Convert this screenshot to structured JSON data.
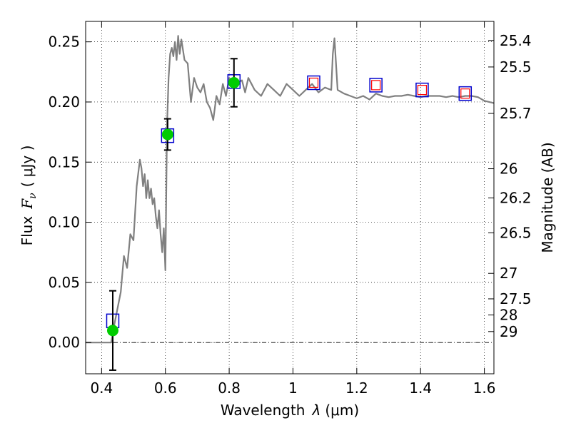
{
  "chart_data": {
    "type": "scatter",
    "xlabel_text": "Wavelength",
    "xlabel_lambda": "λ",
    "xlabel_unit": "(μm)",
    "ylabel_text": "Flux",
    "ylabel_symbol": "F",
    "ylabel_sub": "ν",
    "ylabel_unit": "( μJy )",
    "y2label": "Magnitude (AB)",
    "xlim": [
      0.35,
      1.63
    ],
    "ylim": [
      -0.026,
      0.267
    ],
    "grid": true,
    "x_ticks": [
      {
        "value": 0.4,
        "label": "0.4"
      },
      {
        "value": 0.6,
        "label": "0.6"
      },
      {
        "value": 0.8,
        "label": "0.8"
      },
      {
        "value": 1.0,
        "label": "1"
      },
      {
        "value": 1.2,
        "label": "1.2"
      },
      {
        "value": 1.4,
        "label": "1.4"
      },
      {
        "value": 1.6,
        "label": "1.6"
      }
    ],
    "y_ticks": [
      {
        "value": 0.0,
        "label": "0.00"
      },
      {
        "value": 0.05,
        "label": "0.05"
      },
      {
        "value": 0.1,
        "label": "0.10"
      },
      {
        "value": 0.15,
        "label": "0.15"
      },
      {
        "value": 0.2,
        "label": "0.20"
      },
      {
        "value": 0.25,
        "label": "0.25"
      }
    ],
    "mag_ticks": [
      {
        "flux": 0.2511,
        "label": "25.4"
      },
      {
        "flux": 0.2291,
        "label": "25.5"
      },
      {
        "flux": 0.1905,
        "label": "25.7"
      },
      {
        "flux": 0.1445,
        "label": "26"
      },
      {
        "flux": 0.1202,
        "label": "26.2"
      },
      {
        "flux": 0.0912,
        "label": "26.5"
      },
      {
        "flux": 0.0575,
        "label": "27"
      },
      {
        "flux": 0.0363,
        "label": "27.5"
      },
      {
        "flux": 0.0229,
        "label": "28"
      },
      {
        "flux": 0.0091,
        "label": "29"
      }
    ],
    "zero_line": 0.0,
    "series": [
      {
        "style": "sed-model",
        "color": "#808080",
        "x": [
          0.35,
          0.43,
          0.44,
          0.46,
          0.47,
          0.48,
          0.49,
          0.5,
          0.51,
          0.52,
          0.525,
          0.53,
          0.535,
          0.54,
          0.545,
          0.55,
          0.555,
          0.56,
          0.565,
          0.57,
          0.575,
          0.58,
          0.585,
          0.59,
          0.595,
          0.6,
          0.605,
          0.61,
          0.615,
          0.62,
          0.625,
          0.63,
          0.635,
          0.64,
          0.645,
          0.65,
          0.66,
          0.67,
          0.68,
          0.69,
          0.7,
          0.71,
          0.72,
          0.73,
          0.74,
          0.75,
          0.76,
          0.77,
          0.78,
          0.79,
          0.8,
          0.82,
          0.84,
          0.85,
          0.86,
          0.87,
          0.88,
          0.9,
          0.92,
          0.94,
          0.96,
          0.98,
          1.0,
          1.02,
          1.04,
          1.06,
          1.08,
          1.1,
          1.12,
          1.125,
          1.13,
          1.14,
          1.16,
          1.18,
          1.2,
          1.22,
          1.24,
          1.26,
          1.28,
          1.3,
          1.32,
          1.34,
          1.36,
          1.38,
          1.4,
          1.42,
          1.44,
          1.46,
          1.48,
          1.5,
          1.52,
          1.54,
          1.56,
          1.58,
          1.6,
          1.63
        ],
        "y": [
          0.0,
          0.0,
          0.015,
          0.042,
          0.072,
          0.062,
          0.09,
          0.085,
          0.13,
          0.152,
          0.145,
          0.13,
          0.14,
          0.12,
          0.135,
          0.12,
          0.128,
          0.115,
          0.12,
          0.105,
          0.095,
          0.11,
          0.09,
          0.075,
          0.095,
          0.06,
          0.18,
          0.22,
          0.24,
          0.245,
          0.238,
          0.25,
          0.235,
          0.255,
          0.24,
          0.252,
          0.235,
          0.232,
          0.2,
          0.22,
          0.212,
          0.208,
          0.215,
          0.2,
          0.195,
          0.185,
          0.205,
          0.198,
          0.215,
          0.205,
          0.22,
          0.215,
          0.218,
          0.208,
          0.22,
          0.215,
          0.21,
          0.205,
          0.215,
          0.21,
          0.205,
          0.215,
          0.21,
          0.205,
          0.21,
          0.215,
          0.208,
          0.212,
          0.21,
          0.24,
          0.253,
          0.21,
          0.207,
          0.205,
          0.203,
          0.205,
          0.202,
          0.207,
          0.205,
          0.204,
          0.205,
          0.205,
          0.206,
          0.205,
          0.204,
          0.205,
          0.205,
          0.205,
          0.204,
          0.205,
          0.204,
          0.205,
          0.205,
          0.204,
          0.201,
          0.199
        ]
      },
      {
        "style": "model-box",
        "color": "#0000cc",
        "x": [
          0.435,
          0.607,
          0.815,
          1.065,
          1.26,
          1.405,
          1.54
        ],
        "y": [
          0.018,
          0.172,
          0.217,
          0.216,
          0.214,
          0.21,
          0.207
        ]
      },
      {
        "style": "observed",
        "color": "#00cc00",
        "x": [
          0.435,
          0.607,
          0.815
        ],
        "y": [
          0.01,
          0.173,
          0.216
        ],
        "yerr": [
          0.033,
          0.013,
          0.02
        ]
      },
      {
        "style": "upper-limit",
        "color": "#ff0000",
        "x": [
          1.065,
          1.26,
          1.405,
          1.54
        ],
        "y": [
          0.216,
          0.214,
          0.21,
          0.207
        ]
      }
    ]
  }
}
